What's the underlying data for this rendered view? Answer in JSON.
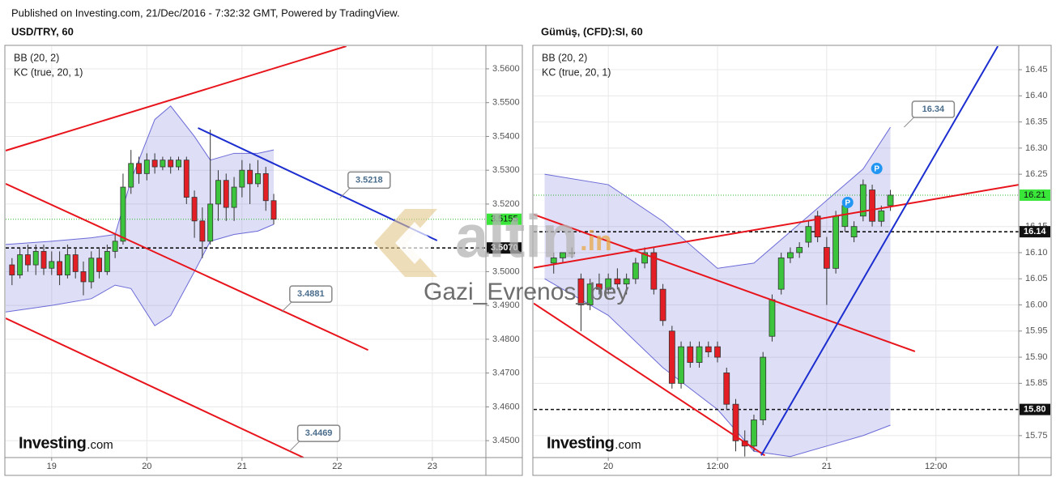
{
  "header": "Published on Investing.com, 21/Dec/2016 - 7:32:32 GMT, Powered by TradingView.",
  "watermark": {
    "logo": "altin",
    "logo_suffix": ".in",
    "text": "Gazi_Evrenos_bey"
  },
  "chart_data": [
    {
      "type": "candlestick",
      "title": "USD/TRY, 60",
      "indicators": [
        "BB (20, 2)",
        "KC (true, 20, 1)"
      ],
      "logo": "Investing",
      "logo_suffix": ".com",
      "grid": true,
      "up_color": "#3cc43c",
      "down_color": "#e41e25",
      "xlim": [
        -11.6,
        109.5
      ],
      "xticks": [
        {
          "value": 0,
          "label": "19"
        },
        {
          "value": 24,
          "label": "20"
        },
        {
          "value": 48,
          "label": "21"
        },
        {
          "value": 72,
          "label": "22"
        },
        {
          "value": 96,
          "label": "23"
        }
      ],
      "ylim": [
        3.445,
        3.5667
      ],
      "yticks": [
        {
          "value": 3.45,
          "label": "3.4500"
        },
        {
          "value": 3.46,
          "label": "3.4600"
        },
        {
          "value": 3.47,
          "label": "3.4700"
        },
        {
          "value": 3.48,
          "label": "3.4800"
        },
        {
          "value": 3.49,
          "label": "3.4900"
        },
        {
          "value": 3.5,
          "label": "3.5000"
        },
        {
          "value": 3.52,
          "label": "3.5200"
        },
        {
          "value": 3.53,
          "label": "3.5300"
        },
        {
          "value": 3.54,
          "label": "3.5400"
        },
        {
          "value": 3.55,
          "label": "3.5500"
        },
        {
          "value": 3.56,
          "label": "3.5600"
        }
      ],
      "x": [
        -10,
        -8,
        -6,
        -4,
        -2,
        0,
        2,
        4,
        6,
        8,
        10,
        12,
        14,
        16,
        18,
        20,
        22,
        24,
        26,
        28,
        30,
        32,
        34,
        36,
        38,
        40,
        42,
        44,
        46,
        48,
        50,
        52,
        54,
        56
      ],
      "open": [
        3.502,
        3.499,
        3.505,
        3.502,
        3.506,
        3.501,
        3.503,
        3.499,
        3.505,
        3.5,
        3.497,
        3.504,
        3.5,
        3.506,
        3.509,
        3.525,
        3.532,
        3.529,
        3.533,
        3.531,
        3.533,
        3.531,
        3.533,
        3.522,
        3.515,
        3.509,
        3.52,
        3.527,
        3.519,
        3.525,
        3.53,
        3.526,
        3.529,
        3.521
      ],
      "high": [
        3.504,
        3.507,
        3.508,
        3.508,
        3.508,
        3.506,
        3.506,
        3.508,
        3.507,
        3.503,
        3.506,
        3.507,
        3.508,
        3.511,
        3.529,
        3.536,
        3.534,
        3.535,
        3.535,
        3.534,
        3.534,
        3.534,
        3.534,
        3.524,
        3.519,
        3.542,
        3.53,
        3.529,
        3.528,
        3.533,
        3.532,
        3.533,
        3.531,
        3.523
      ],
      "low": [
        3.496,
        3.498,
        3.5,
        3.499,
        3.499,
        3.499,
        3.496,
        3.498,
        3.498,
        3.493,
        3.495,
        3.498,
        3.499,
        3.504,
        3.508,
        3.523,
        3.526,
        3.527,
        3.529,
        3.53,
        3.529,
        3.53,
        3.52,
        3.51,
        3.504,
        3.508,
        3.515,
        3.515,
        3.515,
        3.522,
        3.52,
        3.525,
        3.518,
        3.514
      ],
      "close": [
        3.499,
        3.505,
        3.502,
        3.506,
        3.501,
        3.503,
        3.499,
        3.505,
        3.5,
        3.497,
        3.504,
        3.5,
        3.506,
        3.509,
        3.525,
        3.532,
        3.529,
        3.533,
        3.531,
        3.533,
        3.531,
        3.533,
        3.522,
        3.515,
        3.509,
        3.52,
        3.527,
        3.519,
        3.525,
        3.53,
        3.526,
        3.529,
        3.521,
        3.5155
      ],
      "band": {
        "color": "#6b6bd8",
        "x": [
          -12,
          0,
          10,
          16,
          20,
          26,
          30,
          36,
          40,
          46,
          52,
          56
        ],
        "upper": [
          3.508,
          3.509,
          3.51,
          3.511,
          3.527,
          3.545,
          3.549,
          3.54,
          3.533,
          3.535,
          3.535,
          3.536
        ],
        "lower": [
          3.488,
          3.49,
          3.492,
          3.496,
          3.495,
          3.484,
          3.487,
          3.5,
          3.509,
          3.511,
          3.512,
          3.514
        ]
      },
      "trendlines": [
        {
          "color": "#e8141b",
          "x": [
            -11.6,
            74.3
          ],
          "y": [
            3.5358,
            3.5667
          ]
        },
        {
          "color": "#e8141b",
          "x": [
            -11.6,
            79.8
          ],
          "y": [
            3.526,
            3.4768
          ]
        },
        {
          "color": "#e8141b",
          "x": [
            -11.6,
            63.5
          ],
          "y": [
            3.4862,
            3.445
          ]
        },
        {
          "color": "#1c2ecf",
          "x": [
            36.9,
            97.2
          ],
          "y": [
            3.5425,
            3.5092
          ]
        }
      ],
      "callouts": [
        {
          "x": 72.7,
          "value": 3.5218
        },
        {
          "x": 58,
          "value": 3.4881
        },
        {
          "x": 60,
          "value": 3.4469
        }
      ],
      "levels": [
        3.507
      ],
      "level_labels": [
        "3.5070"
      ],
      "last_price": 3.5155,
      "markers": []
    },
    {
      "type": "candlestick",
      "title": "Gümüş, (CFD):SI, 60",
      "indicators": [
        "BB (20, 2)",
        "KC (true, 20, 1)"
      ],
      "logo": "Investing",
      "logo_suffix": ".com",
      "grid": true,
      "up_color": "#3cc43c",
      "down_color": "#e41e25",
      "xlim": [
        -8.2,
        45.1
      ],
      "xticks": [
        {
          "value": 0,
          "label": "20"
        },
        {
          "value": 12,
          "label": "12:00"
        },
        {
          "value": 24,
          "label": "21"
        },
        {
          "value": 36,
          "label": "12:00"
        }
      ],
      "ylim": [
        15.708,
        16.495
      ],
      "yticks": [
        15.75,
        15.85,
        {
          "value": 15.9,
          "label": "15.90"
        },
        15.95,
        {
          "value": 16,
          "label": "16.00"
        },
        16.05,
        {
          "value": 16.1,
          "label": "16.10"
        },
        16.15,
        16.25,
        {
          "value": 16.3,
          "label": "16.30"
        },
        16.35,
        {
          "value": 16.4,
          "label": "16.40"
        },
        16.45
      ],
      "x": [
        -6,
        -5,
        -4,
        -3,
        -2,
        -1,
        0,
        1,
        2,
        3,
        4,
        5,
        6,
        7,
        8,
        9,
        10,
        11,
        12,
        13,
        14,
        15,
        16,
        17,
        18,
        19,
        20,
        21,
        22,
        23,
        24,
        25,
        26,
        27,
        28,
        29,
        30,
        31
      ],
      "open": [
        16.08,
        16.09,
        16.1,
        16.05,
        16.0,
        16.04,
        16.03,
        16.05,
        16.04,
        16.05,
        16.08,
        16.1,
        16.03,
        15.95,
        15.85,
        15.92,
        15.89,
        15.92,
        15.92,
        15.87,
        15.81,
        15.74,
        15.73,
        15.78,
        15.94,
        16.03,
        16.09,
        16.1,
        16.12,
        16.17,
        16.11,
        16.07,
        16.15,
        16.13,
        16.17,
        16.22,
        16.16,
        16.19
      ],
      "high": [
        16.1,
        16.1,
        16.11,
        16.06,
        16.05,
        16.06,
        16.06,
        16.07,
        16.06,
        16.09,
        16.11,
        16.11,
        16.04,
        15.96,
        15.93,
        15.93,
        15.93,
        15.93,
        15.93,
        15.88,
        15.82,
        15.76,
        15.79,
        15.91,
        16.02,
        16.1,
        16.11,
        16.12,
        16.16,
        16.18,
        16.13,
        16.18,
        16.2,
        16.16,
        16.24,
        16.23,
        16.19,
        16.22
      ],
      "low": [
        16.06,
        16.08,
        16.09,
        15.95,
        15.99,
        16.02,
        16.02,
        16.03,
        16.02,
        16.04,
        16.07,
        16.02,
        15.96,
        15.84,
        15.84,
        15.88,
        15.88,
        15.9,
        15.89,
        15.8,
        15.72,
        15.71,
        15.72,
        15.77,
        15.93,
        16.02,
        16.08,
        16.09,
        16.11,
        16.12,
        16.0,
        16.06,
        16.14,
        16.12,
        16.16,
        16.15,
        16.15,
        16.18
      ],
      "close": [
        16.09,
        16.1,
        16.1,
        16.0,
        16.04,
        16.03,
        16.05,
        16.04,
        16.05,
        16.08,
        16.1,
        16.03,
        15.97,
        15.85,
        15.92,
        15.89,
        15.92,
        15.91,
        15.9,
        15.81,
        15.74,
        15.73,
        15.78,
        15.9,
        16.01,
        16.09,
        16.1,
        16.11,
        16.15,
        16.13,
        16.07,
        16.17,
        16.19,
        16.15,
        16.23,
        16.16,
        16.18,
        16.21
      ],
      "band": {
        "color": "#6b6bd8",
        "x": [
          -7,
          0,
          6,
          12,
          16,
          20,
          24,
          28,
          31
        ],
        "upper": [
          16.25,
          16.23,
          16.16,
          16.07,
          16.08,
          16.14,
          16.2,
          16.26,
          16.34
        ],
        "lower": [
          16.05,
          15.98,
          15.88,
          15.8,
          15.72,
          15.71,
          15.73,
          15.75,
          15.77
        ]
      },
      "trendlines": [
        {
          "color": "#e8141b",
          "x": [
            -8.2,
            45.1
          ],
          "y": [
            16.071,
            16.23
          ]
        },
        {
          "color": "#e8141b",
          "x": [
            -8.2,
            33.7
          ],
          "y": [
            16.173,
            15.911
          ]
        },
        {
          "color": "#e8141b",
          "x": [
            -8.2,
            17.2
          ],
          "y": [
            16.003,
            15.712
          ]
        },
        {
          "color": "#1c2ecf",
          "x": [
            16.8,
            42.8
          ],
          "y": [
            15.712,
            16.495
          ]
        }
      ],
      "callouts": [
        {
          "x": 32.5,
          "value": 16.34
        }
      ],
      "levels": [
        16.14,
        15.8
      ],
      "level_labels": [
        "16.14",
        "15.80"
      ],
      "last_price": 16.21,
      "markers": [
        {
          "label": "P",
          "x": 26.3,
          "y": 16.196
        },
        {
          "label": "P",
          "x": 29.5,
          "y": 16.261
        }
      ]
    }
  ]
}
